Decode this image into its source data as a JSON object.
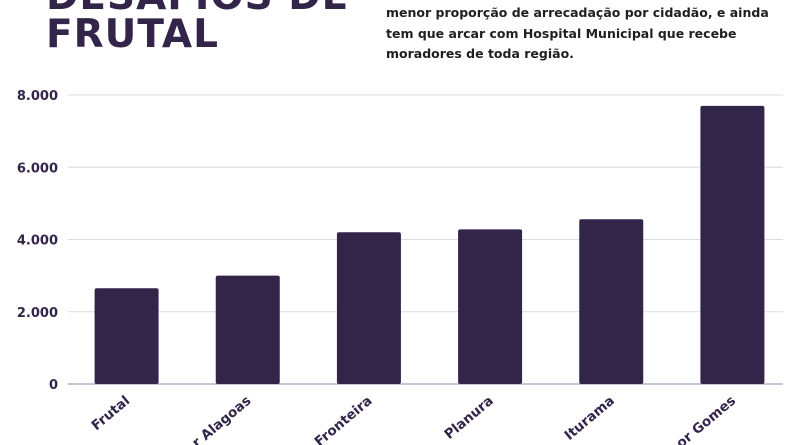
{
  "header": {
    "title_lines": [
      "DESAFIOS DE",
      "FRUTAL"
    ],
    "description_lines": [
      "menor proporção de arrecadação por cidadão, e ainda",
      "tem que arcar com Hospital Municipal que recebe",
      "moradores de toda região."
    ]
  },
  "colors": {
    "bar": "#33244a",
    "text": "#33244a",
    "grid": "#dcdcdc",
    "axis": "#b9b0c8"
  },
  "chart_data": {
    "type": "bar",
    "categories": [
      "Frutal",
      "Conceição das Alagoas",
      "Fronteira",
      "Planura",
      "Iturama",
      "Comendador Gomes"
    ],
    "category_labels": [
      "Frutal",
      "r Alagoas",
      "Fronteira",
      "Planura",
      "Iturama",
      "or Gomes"
    ],
    "values": [
      2650,
      3000,
      4200,
      4280,
      4560,
      7700
    ],
    "yticks": [
      0,
      2000,
      4000,
      6000,
      8000
    ],
    "ytick_labels": [
      "0",
      "2.000",
      "4.000",
      "6.000",
      "8.000"
    ],
    "ylim": [
      0,
      8000
    ],
    "grid": true
  }
}
